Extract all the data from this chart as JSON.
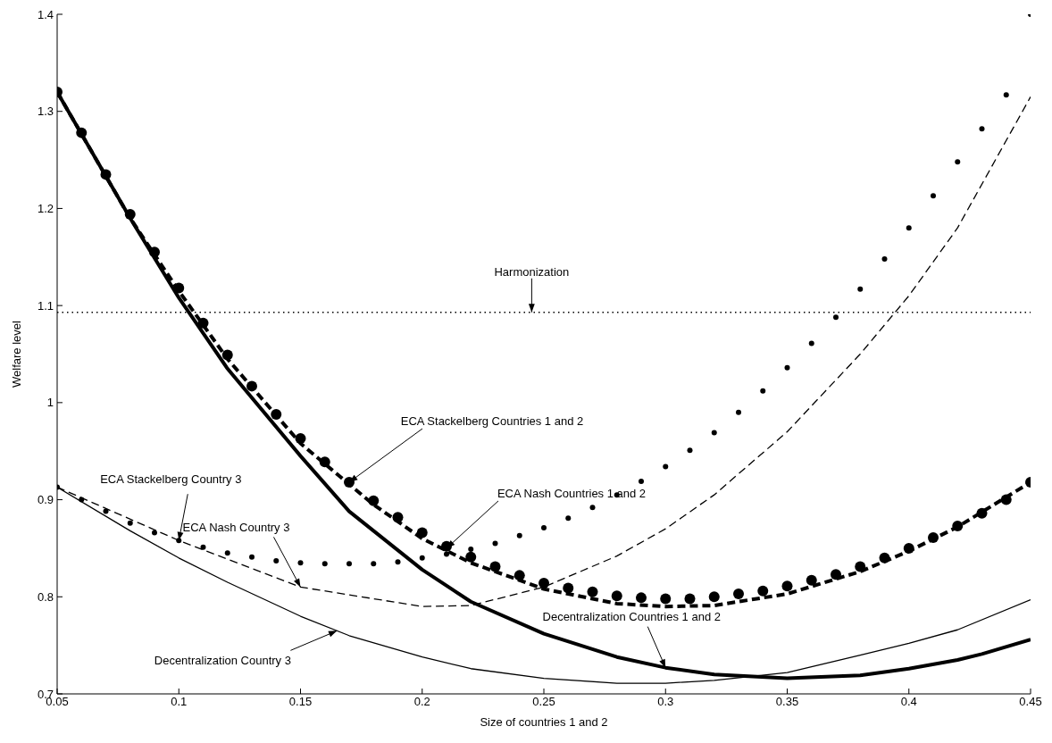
{
  "chart_data": {
    "type": "line",
    "xlabel": "Size of countries 1 and 2",
    "ylabel": "Welfare level",
    "xlim": [
      0.05,
      0.45
    ],
    "xticks": [
      0.05,
      0.1,
      0.15,
      0.2,
      0.25,
      0.3,
      0.35,
      0.4,
      0.45
    ],
    "ylim": [
      0.7,
      1.4
    ],
    "yticks": [
      0.7,
      0.8,
      0.9,
      1,
      1.1,
      1.2,
      1.3,
      1.4
    ],
    "grid": false,
    "series": [
      {
        "type": "scatter",
        "marker": "circle",
        "color": "#000000",
        "x": [
          0.05,
          0.06,
          0.07,
          0.08,
          0.09,
          0.1,
          0.11,
          0.12,
          0.13,
          0.14,
          0.15,
          0.16,
          0.17,
          0.18,
          0.19,
          0.2,
          0.21,
          0.22,
          0.23,
          0.24,
          0.25,
          0.26,
          0.27,
          0.28,
          0.29,
          0.3,
          0.31,
          0.32,
          0.33,
          0.34,
          0.35,
          0.36,
          0.37,
          0.38,
          0.39,
          0.4,
          0.41,
          0.42,
          0.43,
          0.44,
          0.45
        ],
        "values": [
          1.32,
          1.278,
          1.235,
          1.194,
          1.155,
          1.118,
          1.082,
          1.049,
          1.017,
          0.988,
          0.963,
          0.939,
          0.918,
          0.899,
          0.882,
          0.866,
          0.852,
          0.841,
          0.831,
          0.822,
          0.814,
          0.809,
          0.805,
          0.801,
          0.799,
          0.798,
          0.798,
          0.8,
          0.803,
          0.806,
          0.811,
          0.817,
          0.823,
          0.831,
          0.84,
          0.85,
          0.861,
          0.873,
          0.886,
          0.9,
          0.918
        ]
      },
      {
        "type": "line",
        "line_style": "dashed",
        "color": "#000000",
        "x": [
          0.05,
          0.08,
          0.1,
          0.12,
          0.15,
          0.18,
          0.2,
          0.22,
          0.25,
          0.28,
          0.3,
          0.32,
          0.35,
          0.38,
          0.4,
          0.42,
          0.45
        ],
        "values": [
          1.32,
          1.19,
          1.115,
          1.045,
          0.958,
          0.895,
          0.86,
          0.835,
          0.808,
          0.793,
          0.79,
          0.791,
          0.803,
          0.826,
          0.847,
          0.872,
          0.918
        ]
      },
      {
        "type": "line",
        "line_style": "solid",
        "color": "#000000",
        "x": [
          0.05,
          0.08,
          0.1,
          0.12,
          0.15,
          0.17,
          0.2,
          0.22,
          0.25,
          0.28,
          0.3,
          0.32,
          0.35,
          0.38,
          0.4,
          0.42,
          0.43,
          0.45
        ],
        "values": [
          1.32,
          1.19,
          1.108,
          1.035,
          0.945,
          0.888,
          0.828,
          0.795,
          0.762,
          0.738,
          0.727,
          0.72,
          0.716,
          0.719,
          0.726,
          0.735,
          0.741,
          0.756
        ]
      },
      {
        "type": "scatter",
        "marker": "circle",
        "color": "#000000",
        "x": [
          0.05,
          0.06,
          0.07,
          0.08,
          0.09,
          0.1,
          0.11,
          0.12,
          0.13,
          0.14,
          0.15,
          0.16,
          0.17,
          0.18,
          0.19,
          0.2,
          0.21,
          0.22,
          0.23,
          0.24,
          0.25,
          0.26,
          0.27,
          0.28,
          0.29,
          0.3,
          0.31,
          0.32,
          0.33,
          0.34,
          0.35,
          0.36,
          0.37,
          0.38,
          0.39,
          0.4,
          0.41,
          0.42,
          0.43,
          0.44,
          0.45
        ],
        "values": [
          0.913,
          0.9,
          0.888,
          0.876,
          0.866,
          0.858,
          0.851,
          0.845,
          0.841,
          0.837,
          0.835,
          0.834,
          0.834,
          0.834,
          0.836,
          0.84,
          0.844,
          0.849,
          0.855,
          0.863,
          0.871,
          0.881,
          0.892,
          0.905,
          0.919,
          0.934,
          0.951,
          0.969,
          0.99,
          1.012,
          1.036,
          1.061,
          1.088,
          1.117,
          1.148,
          1.18,
          1.213,
          1.248,
          1.282,
          1.317,
          1.4
        ]
      },
      {
        "type": "line",
        "line_style": "dashed",
        "color": "#000000",
        "x": [
          0.05,
          0.1,
          0.15,
          0.2,
          0.22,
          0.25,
          0.28,
          0.3,
          0.32,
          0.35,
          0.38,
          0.4,
          0.42,
          0.45
        ],
        "values": [
          0.913,
          0.858,
          0.81,
          0.79,
          0.791,
          0.81,
          0.842,
          0.87,
          0.905,
          0.97,
          1.05,
          1.11,
          1.18,
          1.315
        ]
      },
      {
        "type": "line",
        "line_style": "solid",
        "color": "#000000",
        "x": [
          0.05,
          0.08,
          0.1,
          0.12,
          0.15,
          0.17,
          0.2,
          0.22,
          0.25,
          0.28,
          0.3,
          0.32,
          0.35,
          0.38,
          0.4,
          0.42,
          0.45
        ],
        "values": [
          0.913,
          0.868,
          0.84,
          0.815,
          0.78,
          0.76,
          0.738,
          0.726,
          0.716,
          0.711,
          0.711,
          0.714,
          0.722,
          0.74,
          0.752,
          0.766,
          0.797
        ]
      }
    ],
    "ref_lines": [
      {
        "axis": "y",
        "value": 1.093,
        "line_style": "dotted",
        "color": "#000000"
      }
    ],
    "annotations": [
      {
        "text": "Harmonization",
        "x": 0.245,
        "y": 1.093
      },
      {
        "text": "ECA Stackelberg Countries 1 and 2",
        "x": 0.17,
        "y": 0.918
      },
      {
        "text": "ECA Nash Countries 1 and 2",
        "x": 0.21,
        "y": 0.85
      },
      {
        "text": "ECA Stackelberg Country 3",
        "x": 0.1,
        "y": 0.858
      },
      {
        "text": "ECA Nash Country 3",
        "x": 0.15,
        "y": 0.81
      },
      {
        "text": "Decentralization Countries 1 and 2",
        "x": 0.3,
        "y": 0.727
      },
      {
        "text": "Decentralization Country 3",
        "x": 0.165,
        "y": 0.765
      }
    ]
  }
}
